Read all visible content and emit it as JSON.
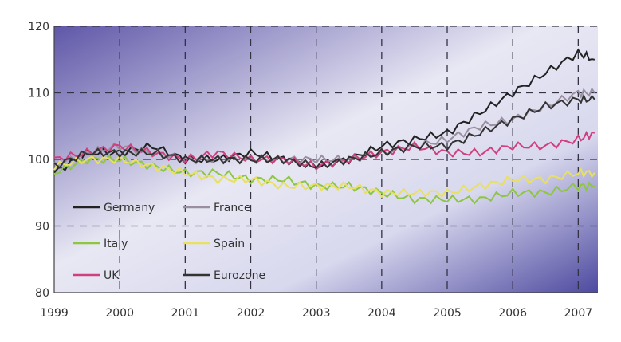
{
  "chart_data": {
    "type": "line",
    "title": "",
    "xlabel": "",
    "ylabel": "",
    "x_ticks": [
      "1999",
      "2000",
      "2001",
      "2002",
      "2003",
      "2004",
      "2005",
      "2006",
      "2007"
    ],
    "y_ticks": [
      "80",
      "90",
      "100",
      "110",
      "120"
    ],
    "xlim": [
      1999,
      2007.3
    ],
    "ylim": [
      80,
      120
    ],
    "grid": true,
    "legend_position": "bottom-left",
    "x": [
      1999.0,
      1999.5,
      2000.0,
      2000.5,
      2001.0,
      2001.5,
      2002.0,
      2002.5,
      2003.0,
      2003.5,
      2004.0,
      2004.5,
      2005.0,
      2005.5,
      2006.0,
      2006.5,
      2007.0,
      2007.25
    ],
    "series": [
      {
        "name": "Germany",
        "color": "#222222",
        "values": [
          98,
          101,
          101,
          102,
          100,
          100,
          101,
          100,
          99,
          100,
          102,
          103,
          104,
          107,
          110,
          113,
          116,
          115
        ]
      },
      {
        "name": "France",
        "color": "#9a8fa0",
        "values": [
          99,
          101,
          102,
          101,
          100,
          100,
          100,
          100,
          100,
          100,
          101,
          102,
          103,
          105,
          106,
          108,
          110,
          110
        ]
      },
      {
        "name": "Italy",
        "color": "#8dc63f",
        "values": [
          98,
          100,
          100,
          99,
          98,
          98,
          97,
          97,
          96,
          96,
          95,
          94,
          94,
          94,
          95,
          95,
          96,
          96
        ]
      },
      {
        "name": "Spain",
        "color": "#e8e060",
        "values": [
          99,
          100,
          100,
          99,
          98,
          97,
          97,
          96,
          96,
          96,
          95,
          95,
          95,
          96,
          97,
          97,
          98,
          98
        ]
      },
      {
        "name": "UK",
        "color": "#d04080",
        "values": [
          100,
          101,
          102,
          101,
          100,
          101,
          100,
          100,
          99,
          100,
          101,
          102,
          101,
          101,
          102,
          102,
          103,
          104
        ]
      },
      {
        "name": "Eurozone",
        "color": "#333333",
        "values": [
          99,
          101,
          101,
          101,
          100,
          100,
          100,
          100,
          99,
          100,
          101,
          102,
          102,
          104,
          106,
          108,
          109,
          109
        ]
      }
    ],
    "legend": [
      {
        "label": "Germany",
        "color": "#222222"
      },
      {
        "label": "France",
        "color": "#9a8fa0"
      },
      {
        "label": "Italy",
        "color": "#8dc63f"
      },
      {
        "label": "Spain",
        "color": "#e8e060"
      },
      {
        "label": "UK",
        "color": "#d04080"
      },
      {
        "label": "Eurozone",
        "color": "#333333"
      }
    ]
  }
}
